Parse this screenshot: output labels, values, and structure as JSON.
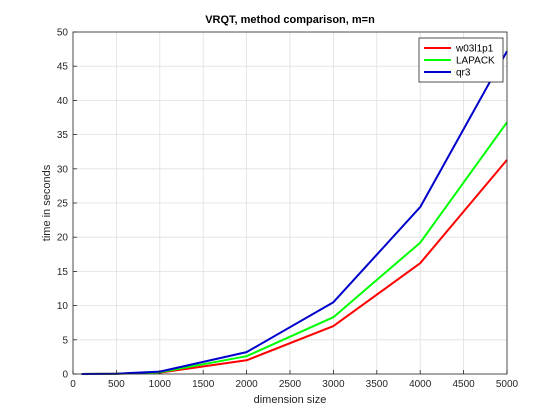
{
  "chart_data": {
    "type": "line",
    "title": "VRQT, method comparison, m=n",
    "xlabel": "dimension size",
    "ylabel": "time in seconds",
    "xlim": [
      0,
      5000
    ],
    "ylim": [
      0,
      50
    ],
    "x_ticks": [
      0,
      500,
      1000,
      1500,
      2000,
      2500,
      3000,
      3500,
      4000,
      4500,
      5000
    ],
    "y_ticks": [
      0,
      5,
      10,
      15,
      20,
      25,
      30,
      35,
      40,
      45,
      50
    ],
    "grid": true,
    "legend_position": "top-right",
    "x": [
      100,
      500,
      1000,
      2000,
      3000,
      4000,
      5000
    ],
    "series": [
      {
        "name": "w03l1p1",
        "color": "#ff0000",
        "values": [
          0.0,
          0.03,
          0.2,
          2.0,
          7.0,
          16.2,
          31.3
        ]
      },
      {
        "name": "LAPACK",
        "color": "#00ff00",
        "values": [
          0.0,
          0.04,
          0.25,
          2.6,
          8.3,
          19.2,
          36.8
        ]
      },
      {
        "name": "qr3",
        "color": "#0000cc",
        "values": [
          0.0,
          0.05,
          0.35,
          3.2,
          10.5,
          24.4,
          47.2
        ]
      }
    ]
  }
}
